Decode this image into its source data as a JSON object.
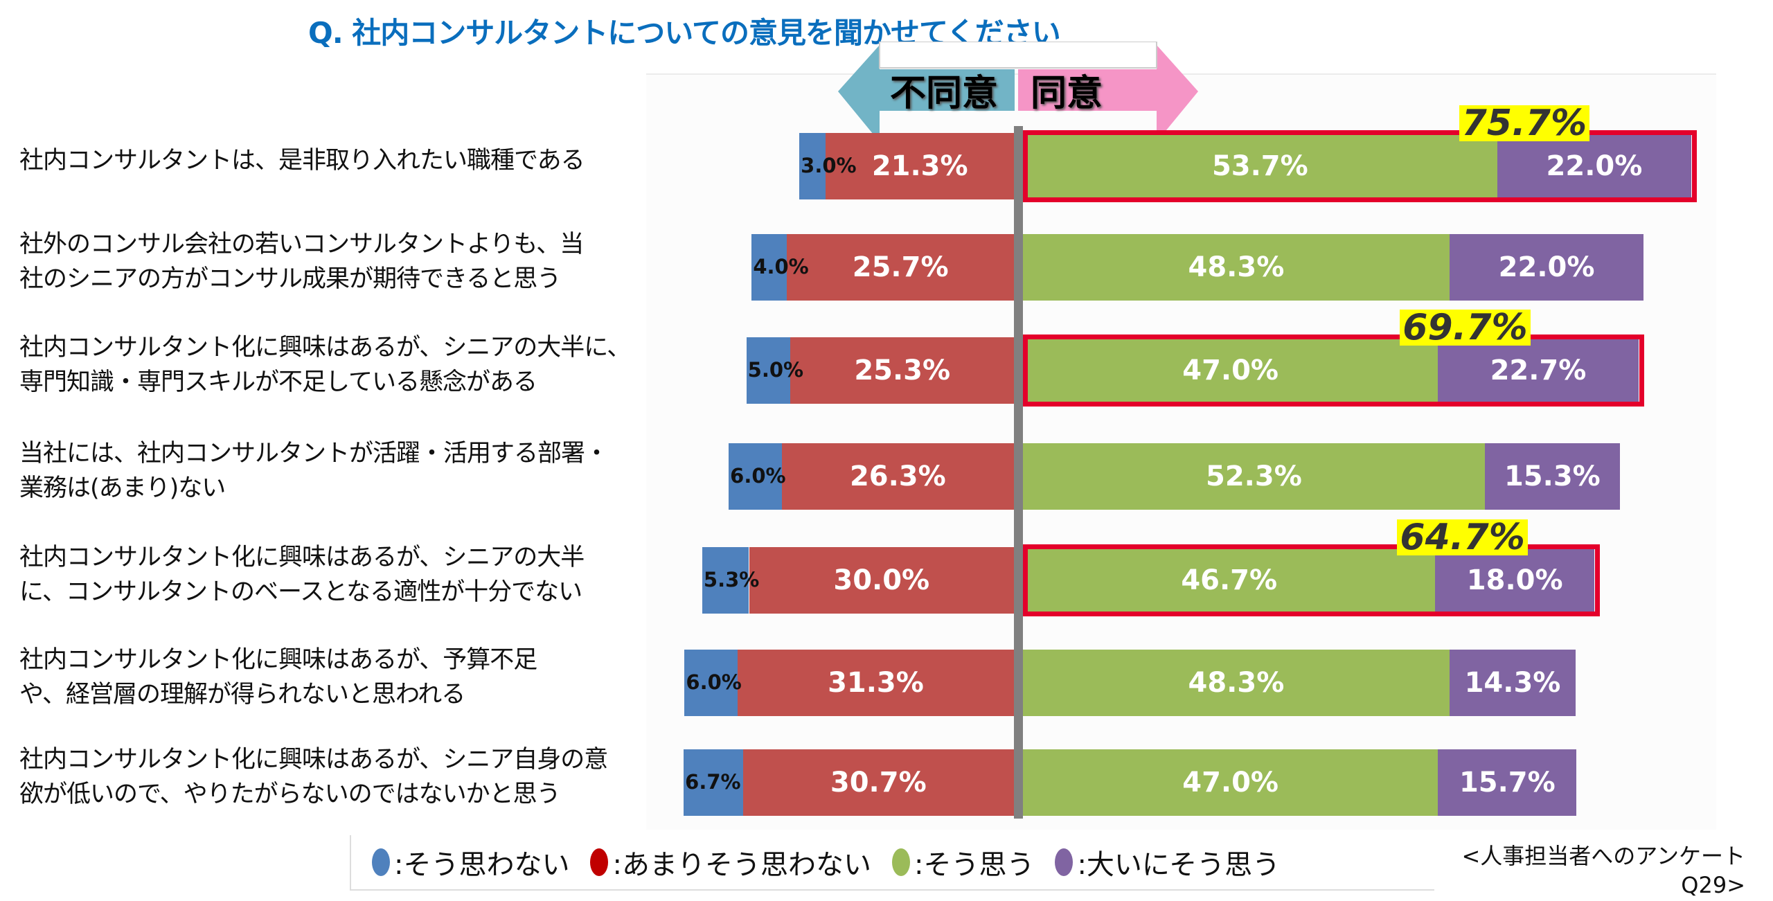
{
  "title": "Q. 社内コンサルタントについての意見を聞かせてください",
  "header": {
    "disagree": "不同意",
    "agree": "同意",
    "disagree_color": "#72b4c6",
    "agree_color": "#f595c6"
  },
  "chart_data": {
    "type": "bar",
    "orientation": "horizontal-diverging-stacked",
    "categories": [
      "社内コンサルタントは、是非取り入れたい職種である",
      "社外のコンサル会社の若いコンサルタントよりも、当\n社のシニアの方がコンサル成果が期待できると思う",
      "社内コンサルタント化に興味はあるが、シニアの大半に、\n専門知識・専門スキルが不足している懸念がある",
      "当社には、社内コンサルタントが活躍・活用する部署・\n業務は(あまり)ない",
      "社内コンサルタント化に興味はあるが、シニアの大半\nに、コンサルタントのベースとなる適性が十分でない",
      "社内コンサルタント化に興味はあるが、予算不足\nや、経営層の理解が得られないと思われる",
      "社内コンサルタント化に興味はあるが、シニア自身の意\n欲が低いので、やりたがらないのではないかと思う"
    ],
    "series": [
      {
        "name": "そう思わない",
        "color": "#4f81bd",
        "values": [
          3.0,
          4.0,
          5.0,
          6.0,
          5.3,
          6.0,
          6.7
        ],
        "labels": [
          "3.0%",
          "4.0%",
          "5.0%",
          "6.0%",
          "5.3%",
          "6.0%",
          "6.7%"
        ]
      },
      {
        "name": "あまりそう思わない",
        "color": "#c0504d",
        "values": [
          21.3,
          25.7,
          25.3,
          26.3,
          30.0,
          31.3,
          30.7
        ],
        "labels": [
          "21.3%",
          "25.7%",
          "25.3%",
          "26.3%",
          "30.0%",
          "31.3%",
          "30.7%"
        ]
      },
      {
        "name": "そう思う",
        "color": "#9bbb59",
        "values": [
          53.7,
          48.3,
          47.0,
          52.3,
          46.7,
          48.3,
          47.0
        ],
        "labels": [
          "53.7%",
          "48.3%",
          "47.0%",
          "52.3%",
          "46.7%",
          "48.3%",
          "47.0%"
        ]
      },
      {
        "name": "大いにそう思う",
        "color": "#8064a2",
        "values": [
          22.0,
          22.0,
          22.7,
          15.3,
          18.0,
          14.3,
          15.7
        ],
        "labels": [
          "22.0%",
          "22.0%",
          "22.7%",
          "15.3%",
          "18.0%",
          "14.3%",
          "15.7%"
        ]
      }
    ],
    "highlights": [
      {
        "row": 0,
        "label": "75.7%"
      },
      {
        "row": 2,
        "label": "69.7%"
      },
      {
        "row": 4,
        "label": "64.7%"
      }
    ],
    "highlight_color": "#e4002b",
    "highlight_tag_color": "#ffff00"
  },
  "legend": [
    {
      "label": ":そう思わない",
      "color": "#4f81bd"
    },
    {
      "label": ":あまりそう思わない",
      "color": "#c00000"
    },
    {
      "label": ":そう思う",
      "color": "#9bbb59"
    },
    {
      "label": ":大いにそう思う",
      "color": "#8064a2"
    }
  ],
  "source": "<人事担当者へのアンケート\nQ29>"
}
